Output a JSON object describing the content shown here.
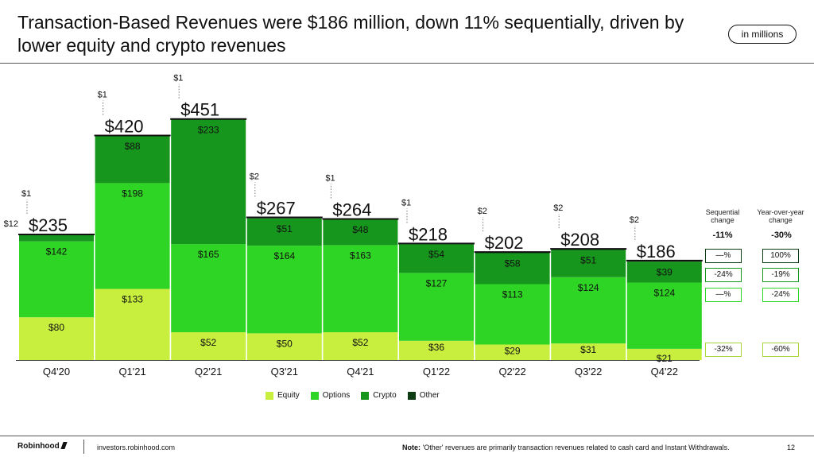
{
  "header": {
    "title": "Transaction-Based Revenues were $186 million, down 11% sequentially, driven by lower equity and crypto revenues",
    "badge": "in millions"
  },
  "colors": {
    "equity": "#c8ef3e",
    "options": "#2fd524",
    "crypto": "#17961d",
    "other": "#0c3d12",
    "change_border": "#39b54a"
  },
  "chart_data": {
    "type": "bar",
    "stacked": true,
    "categories": [
      "Q4'20",
      "Q1'21",
      "Q2'21",
      "Q3'21",
      "Q4'21",
      "Q1'22",
      "Q2'22",
      "Q3'22",
      "Q4'22"
    ],
    "series": [
      {
        "name": "Equity",
        "values": [
          80,
          133,
          52,
          50,
          52,
          36,
          29,
          31,
          21
        ],
        "labels": [
          "$80",
          "$133",
          "$52",
          "$50",
          "$52",
          "$36",
          "$29",
          "$31",
          "$21"
        ]
      },
      {
        "name": "Options",
        "values": [
          142,
          198,
          165,
          164,
          163,
          127,
          113,
          124,
          124
        ],
        "labels": [
          "$142",
          "$198",
          "$165",
          "$164",
          "$163",
          "$127",
          "$113",
          "$124",
          "$124"
        ]
      },
      {
        "name": "Crypto",
        "values": [
          12,
          88,
          233,
          51,
          48,
          54,
          58,
          51,
          39
        ],
        "labels": [
          "$12",
          "$88",
          "$233",
          "$51",
          "$48",
          "$54",
          "$58",
          "$51",
          "$39"
        ]
      },
      {
        "name": "Other",
        "values": [
          1,
          1,
          1,
          2,
          1,
          1,
          2,
          2,
          2
        ],
        "labels": [
          "$1",
          "$1",
          "$1",
          "$2",
          "$1",
          "$1",
          "$2",
          "$2",
          "$2"
        ]
      }
    ],
    "totals": [
      235,
      420,
      451,
      267,
      264,
      218,
      202,
      208,
      186
    ],
    "total_labels": [
      "$235",
      "$420",
      "$451",
      "$267",
      "$264",
      "$218",
      "$202",
      "$208",
      "$186"
    ],
    "ylim": [
      0,
      470
    ],
    "legend": [
      "Equity",
      "Options",
      "Crypto",
      "Other"
    ],
    "legend_position": "bottom-center"
  },
  "change_table": {
    "headers": [
      "Sequential\nchange",
      "Year-over-year\nchange"
    ],
    "total": [
      "-11%",
      "-30%"
    ],
    "rows": [
      {
        "series": "Other",
        "seq": "—%",
        "yoy": "100%"
      },
      {
        "series": "Crypto",
        "seq": "-24%",
        "yoy": "-19%"
      },
      {
        "series": "Options",
        "seq": "—%",
        "yoy": "-24%"
      },
      {
        "series": "Equity",
        "seq": "-32%",
        "yoy": "-60%"
      }
    ]
  },
  "footer": {
    "brand": "Robinhood",
    "url": "investors.robinhood.com",
    "note_label": "Note:",
    "note_text": "'Other' revenues are primarily transaction revenues related to cash card and Instant Withdrawals.",
    "page": "12"
  }
}
